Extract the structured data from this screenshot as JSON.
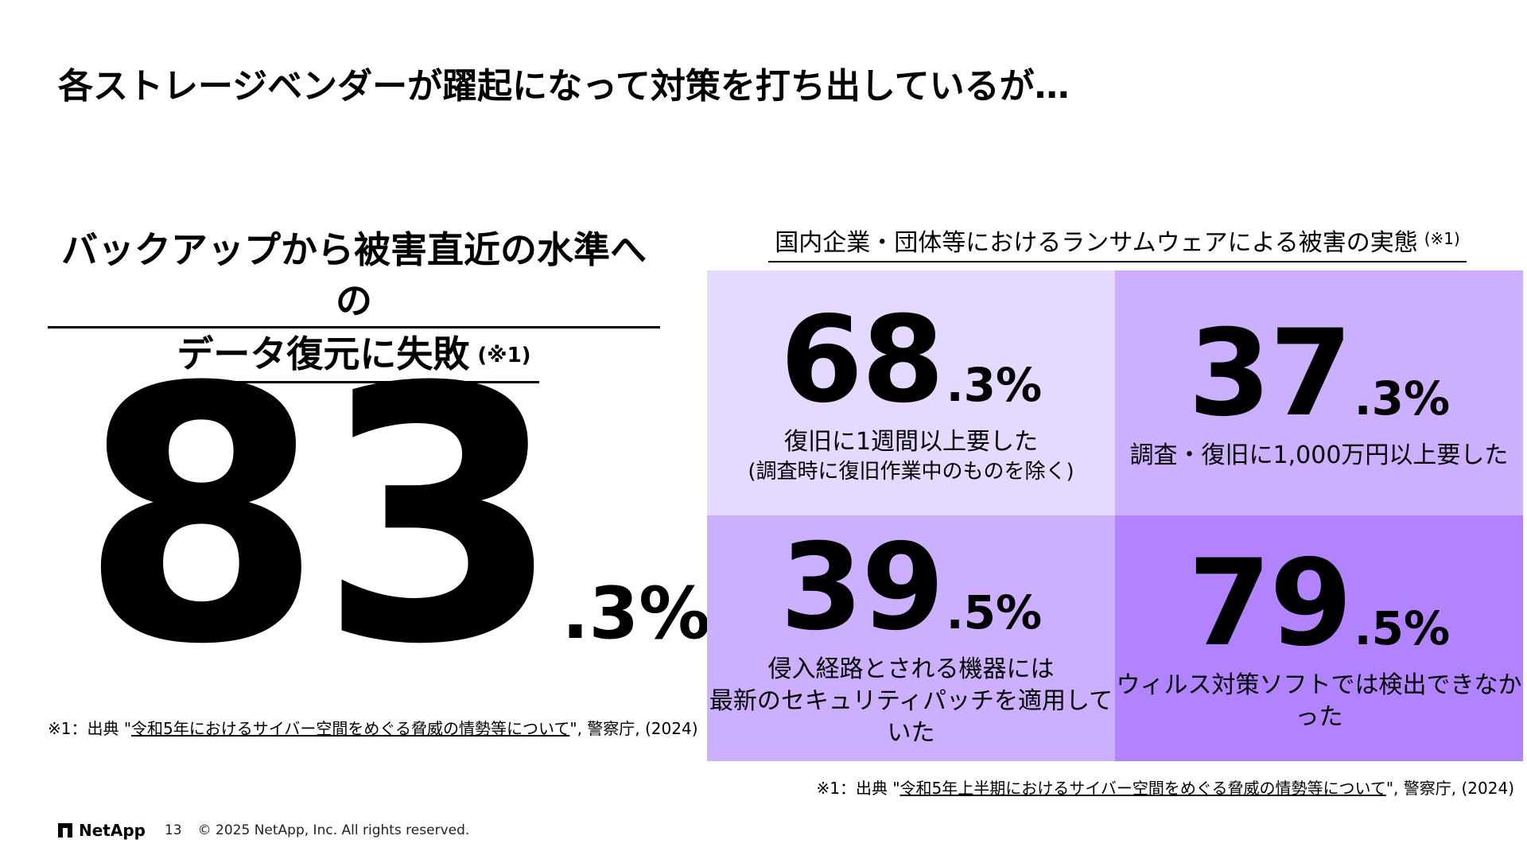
{
  "title": "各ストレージベンダーが躍起になって対策を打ち出しているが…",
  "left": {
    "heading_line1": "バックアップから被害直近の水準への",
    "heading_line2": "データ復元に失敗",
    "heading_note": "(※1)",
    "stat_int": "83",
    "stat_dec": ".3%",
    "footnote_prefix": "※1：出典 \"",
    "footnote_link": "令和5年におけるサイバー空間をめぐる脅威の情勢等について",
    "footnote_suffix": "\", 警察庁, (2024)"
  },
  "right": {
    "heading": "国内企業・団体等におけるランサムウェアによる被害の実態",
    "heading_note": "(※1)",
    "cells": [
      {
        "int": "68",
        "dec": ".3%",
        "caption": "復旧に1週間以上要した",
        "caption2": "(調査時に復旧作業中のものを除く)"
      },
      {
        "int": "37",
        "dec": ".3%",
        "caption": "調査・復旧に1,000万円以上要した",
        "caption2": ""
      },
      {
        "int": "39",
        "dec": ".5%",
        "caption": "侵入経路とされる機器には",
        "caption2": "最新のセキュリティパッチを適用していた"
      },
      {
        "int": "79",
        "dec": ".5%",
        "caption": "ウィルス対策ソフトでは検出できなかった",
        "caption2": ""
      }
    ],
    "colors": [
      "#e6d9ff",
      "#ccafff",
      "#ccafff",
      "#b183ff"
    ],
    "footnote_prefix": "※1：出典 \"",
    "footnote_link": "令和5年上半期におけるサイバー空間をめぐる脅威の情勢等について",
    "footnote_suffix": "\", 警察庁, (2024)"
  },
  "footer": {
    "logo": "NetApp",
    "page": "13",
    "copyright": "© 2025 NetApp, Inc. All rights reserved."
  }
}
